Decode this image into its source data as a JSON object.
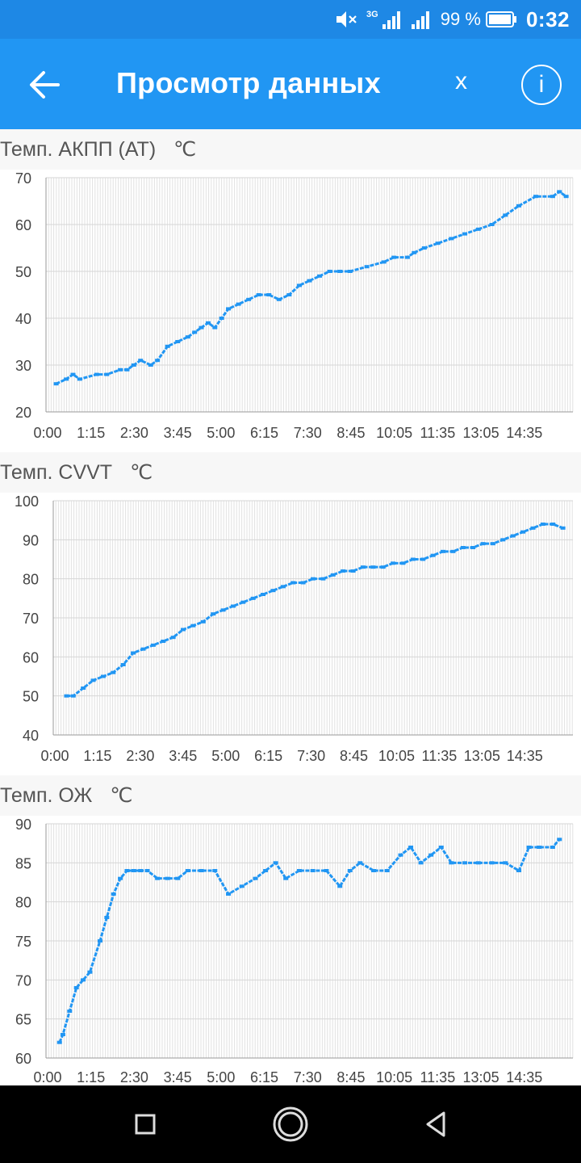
{
  "status_bar": {
    "battery_percent": "99 %",
    "time": "0:32",
    "network": "3G"
  },
  "header": {
    "title": "Просмотр данных",
    "close_label": "x",
    "info_label": "i"
  },
  "colors": {
    "appbar": "#2196f3",
    "statusbar": "#1e88e5",
    "series": "#2196f3"
  },
  "x_ticks": [
    "0:00",
    "1:15",
    "2:30",
    "3:45",
    "5:00",
    "6:15",
    "7:30",
    "8:45",
    "10:05",
    "11:35",
    "13:05",
    "14:35"
  ],
  "charts": [
    {
      "title": "Темп. АКПП (АТ)",
      "unit": "℃",
      "chart_data": {
        "type": "line",
        "ylim": [
          20,
          70
        ],
        "yticks": [
          20,
          30,
          40,
          50,
          60,
          70
        ],
        "x": [
          0.3,
          0.6,
          0.8,
          1.0,
          1.5,
          1.8,
          2.2,
          2.4,
          2.6,
          2.8,
          3.1,
          3.3,
          3.6,
          3.9,
          4.2,
          4.4,
          4.6,
          4.8,
          5.0,
          5.2,
          5.4,
          5.7,
          6.0,
          6.3,
          6.6,
          6.9,
          7.2,
          7.5,
          7.8,
          8.1,
          8.4,
          8.7,
          9.0,
          9.5,
          10.0,
          10.3,
          10.7,
          10.9,
          11.2,
          11.6,
          12.0,
          12.4,
          12.8,
          13.2,
          13.6,
          14.0,
          14.5,
          15.0,
          15.2,
          15.4
        ],
        "y": [
          26,
          27,
          28,
          27,
          28,
          28,
          29,
          29,
          30,
          31,
          30,
          31,
          34,
          35,
          36,
          37,
          38,
          39,
          38,
          40,
          42,
          43,
          44,
          45,
          45,
          44,
          45,
          47,
          48,
          49,
          50,
          50,
          50,
          51,
          52,
          53,
          53,
          54,
          55,
          56,
          57,
          58,
          59,
          60,
          62,
          64,
          66,
          66,
          67,
          66
        ]
      }
    },
    {
      "title": "Темп. CVVT",
      "unit": "℃",
      "chart_data": {
        "type": "line",
        "ylim": [
          40,
          100
        ],
        "yticks": [
          40,
          50,
          60,
          70,
          80,
          90,
          100
        ],
        "x": [
          0.4,
          0.6,
          0.9,
          1.2,
          1.5,
          1.8,
          2.1,
          2.4,
          2.7,
          3.0,
          3.3,
          3.6,
          3.9,
          4.2,
          4.5,
          4.8,
          5.1,
          5.4,
          5.7,
          6.0,
          6.3,
          6.6,
          6.9,
          7.2,
          7.5,
          7.8,
          8.1,
          8.4,
          8.7,
          9.0,
          9.3,
          9.6,
          9.9,
          10.2,
          10.5,
          10.8,
          11.1,
          11.4,
          11.7,
          12.0,
          12.3,
          12.6,
          12.9,
          13.2,
          13.5,
          13.8,
          14.1,
          14.4,
          14.7,
          15.0,
          15.3
        ],
        "y": [
          50,
          50,
          52,
          54,
          55,
          56,
          58,
          61,
          62,
          63,
          64,
          65,
          67,
          68,
          69,
          71,
          72,
          73,
          74,
          75,
          76,
          77,
          78,
          79,
          79,
          80,
          80,
          81,
          82,
          82,
          83,
          83,
          83,
          84,
          84,
          85,
          85,
          86,
          87,
          87,
          88,
          88,
          89,
          89,
          90,
          91,
          92,
          93,
          94,
          94,
          93
        ]
      }
    },
    {
      "title": "Темп. ОЖ",
      "unit": "℃",
      "chart_data": {
        "type": "line",
        "ylim": [
          60,
          90
        ],
        "yticks": [
          60,
          65,
          70,
          75,
          80,
          85,
          90
        ],
        "x": [
          0.4,
          0.5,
          0.7,
          0.9,
          1.1,
          1.3,
          1.6,
          1.8,
          2.0,
          2.2,
          2.4,
          2.6,
          2.8,
          3.0,
          3.3,
          3.6,
          3.9,
          4.2,
          4.6,
          5.0,
          5.4,
          5.8,
          6.2,
          6.5,
          6.8,
          7.1,
          7.5,
          7.9,
          8.3,
          8.7,
          9.0,
          9.3,
          9.7,
          10.1,
          10.5,
          10.8,
          11.1,
          11.4,
          11.7,
          12.0,
          12.4,
          12.8,
          13.2,
          13.6,
          14.0,
          14.3,
          14.6,
          15.0,
          15.2
        ],
        "y": [
          62,
          63,
          66,
          69,
          70,
          71,
          75,
          78,
          81,
          83,
          84,
          84,
          84,
          84,
          83,
          83,
          83,
          84,
          84,
          84,
          81,
          82,
          83,
          84,
          85,
          83,
          84,
          84,
          84,
          82,
          84,
          85,
          84,
          84,
          86,
          87,
          85,
          86,
          87,
          85,
          85,
          85,
          85,
          85,
          84,
          87,
          87,
          87,
          88
        ]
      }
    }
  ]
}
